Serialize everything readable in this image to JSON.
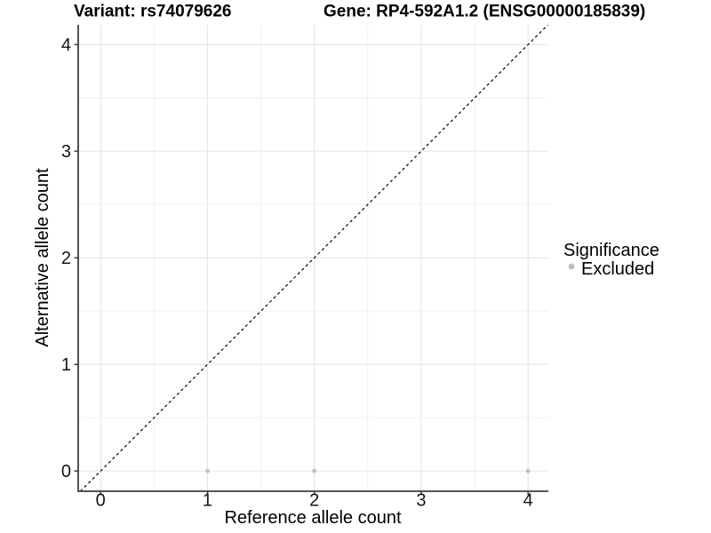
{
  "chart_data": {
    "type": "scatter",
    "titles": {
      "left": "Variant: rs74079626",
      "right": "Gene: RP4-592A1.2 (ENSG00000185839)"
    },
    "xlabel": "Reference allele count",
    "ylabel": "Alternative allele count",
    "xlim": [
      -0.21,
      4.19
    ],
    "ylim": [
      -0.19,
      4.185
    ],
    "xticks": [
      0,
      1,
      2,
      3,
      4
    ],
    "yticks": [
      0,
      1,
      2,
      3,
      4
    ],
    "grid": "major-and-minor",
    "legend_position": "right",
    "series": [
      {
        "name": "Excluded",
        "color": "#bfbfbf",
        "marker": "circle",
        "points": [
          {
            "x": 1,
            "y": 0
          },
          {
            "x": 2,
            "y": 0
          },
          {
            "x": 4,
            "y": 0
          }
        ]
      }
    ],
    "reference_line": {
      "kind": "identity",
      "dashed": true,
      "color": "#000000"
    },
    "legend": {
      "title": "Significance",
      "items": [
        {
          "label": "Excluded",
          "color": "#bfbfbf"
        }
      ]
    },
    "colors": {
      "axis": "#3f3f3f",
      "grid_major": "#e5e5e5",
      "grid_minor": "#efefef",
      "point": "#bfbfbf",
      "background": "#ffffff"
    }
  }
}
